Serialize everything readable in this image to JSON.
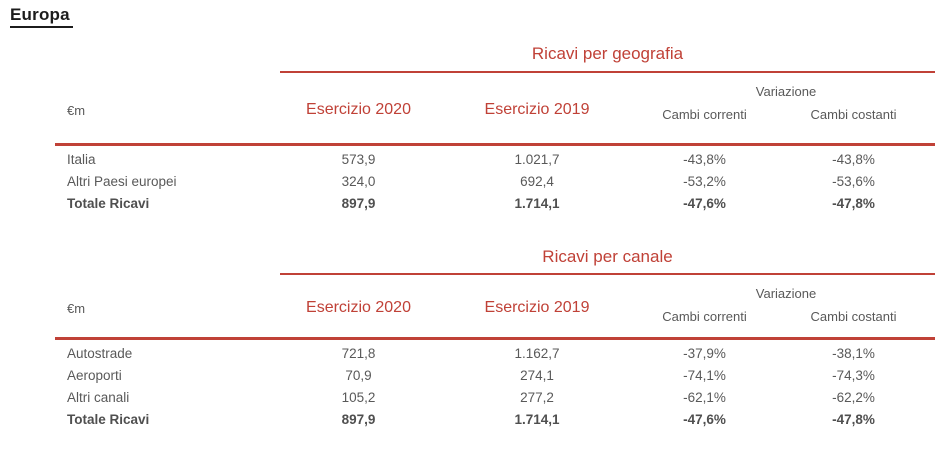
{
  "page": {
    "title": "Europa"
  },
  "colors": {
    "accent_red": "#c04137",
    "body_gray": "#595959",
    "total_gray": "#4f4f4f",
    "title_black": "#1c1c1c"
  },
  "tables": [
    {
      "title": "Ricavi per geografia",
      "unit_label": "€m",
      "col_headers": [
        "Esercizio 2020",
        "Esercizio 2019"
      ],
      "variation_label": "Variazione",
      "variation_cols": [
        "Cambi correnti",
        "Cambi costanti"
      ],
      "rows": [
        {
          "label": "Italia",
          "bold": false,
          "cells": [
            "573,9",
            "1.021,7",
            "-43,8%",
            "-43,8%"
          ]
        },
        {
          "label": "Altri Paesi europei",
          "bold": false,
          "cells": [
            "324,0",
            "692,4",
            "-53,2%",
            "-53,6%"
          ]
        },
        {
          "label": "Totale Ricavi",
          "bold": true,
          "cells": [
            "897,9",
            "1.714,1",
            "-47,6%",
            "-47,8%"
          ]
        }
      ]
    },
    {
      "title": "Ricavi per canale",
      "unit_label": "€m",
      "col_headers": [
        "Esercizio 2020",
        "Esercizio 2019"
      ],
      "variation_label": "Variazione",
      "variation_cols": [
        "Cambi correnti",
        "Cambi costanti"
      ],
      "rows": [
        {
          "label": "Autostrade",
          "bold": false,
          "cells": [
            "721,8",
            "1.162,7",
            "-37,9%",
            "-38,1%"
          ]
        },
        {
          "label": "Aeroporti",
          "bold": false,
          "cells": [
            "70,9",
            "274,1",
            "-74,1%",
            "-74,3%"
          ]
        },
        {
          "label": "Altri canali",
          "bold": false,
          "cells": [
            "105,2",
            "277,2",
            "-62,1%",
            "-62,2%"
          ]
        },
        {
          "label": "Totale Ricavi",
          "bold": true,
          "cells": [
            "897,9",
            "1.714,1",
            "-47,6%",
            "-47,8%"
          ]
        }
      ]
    }
  ]
}
